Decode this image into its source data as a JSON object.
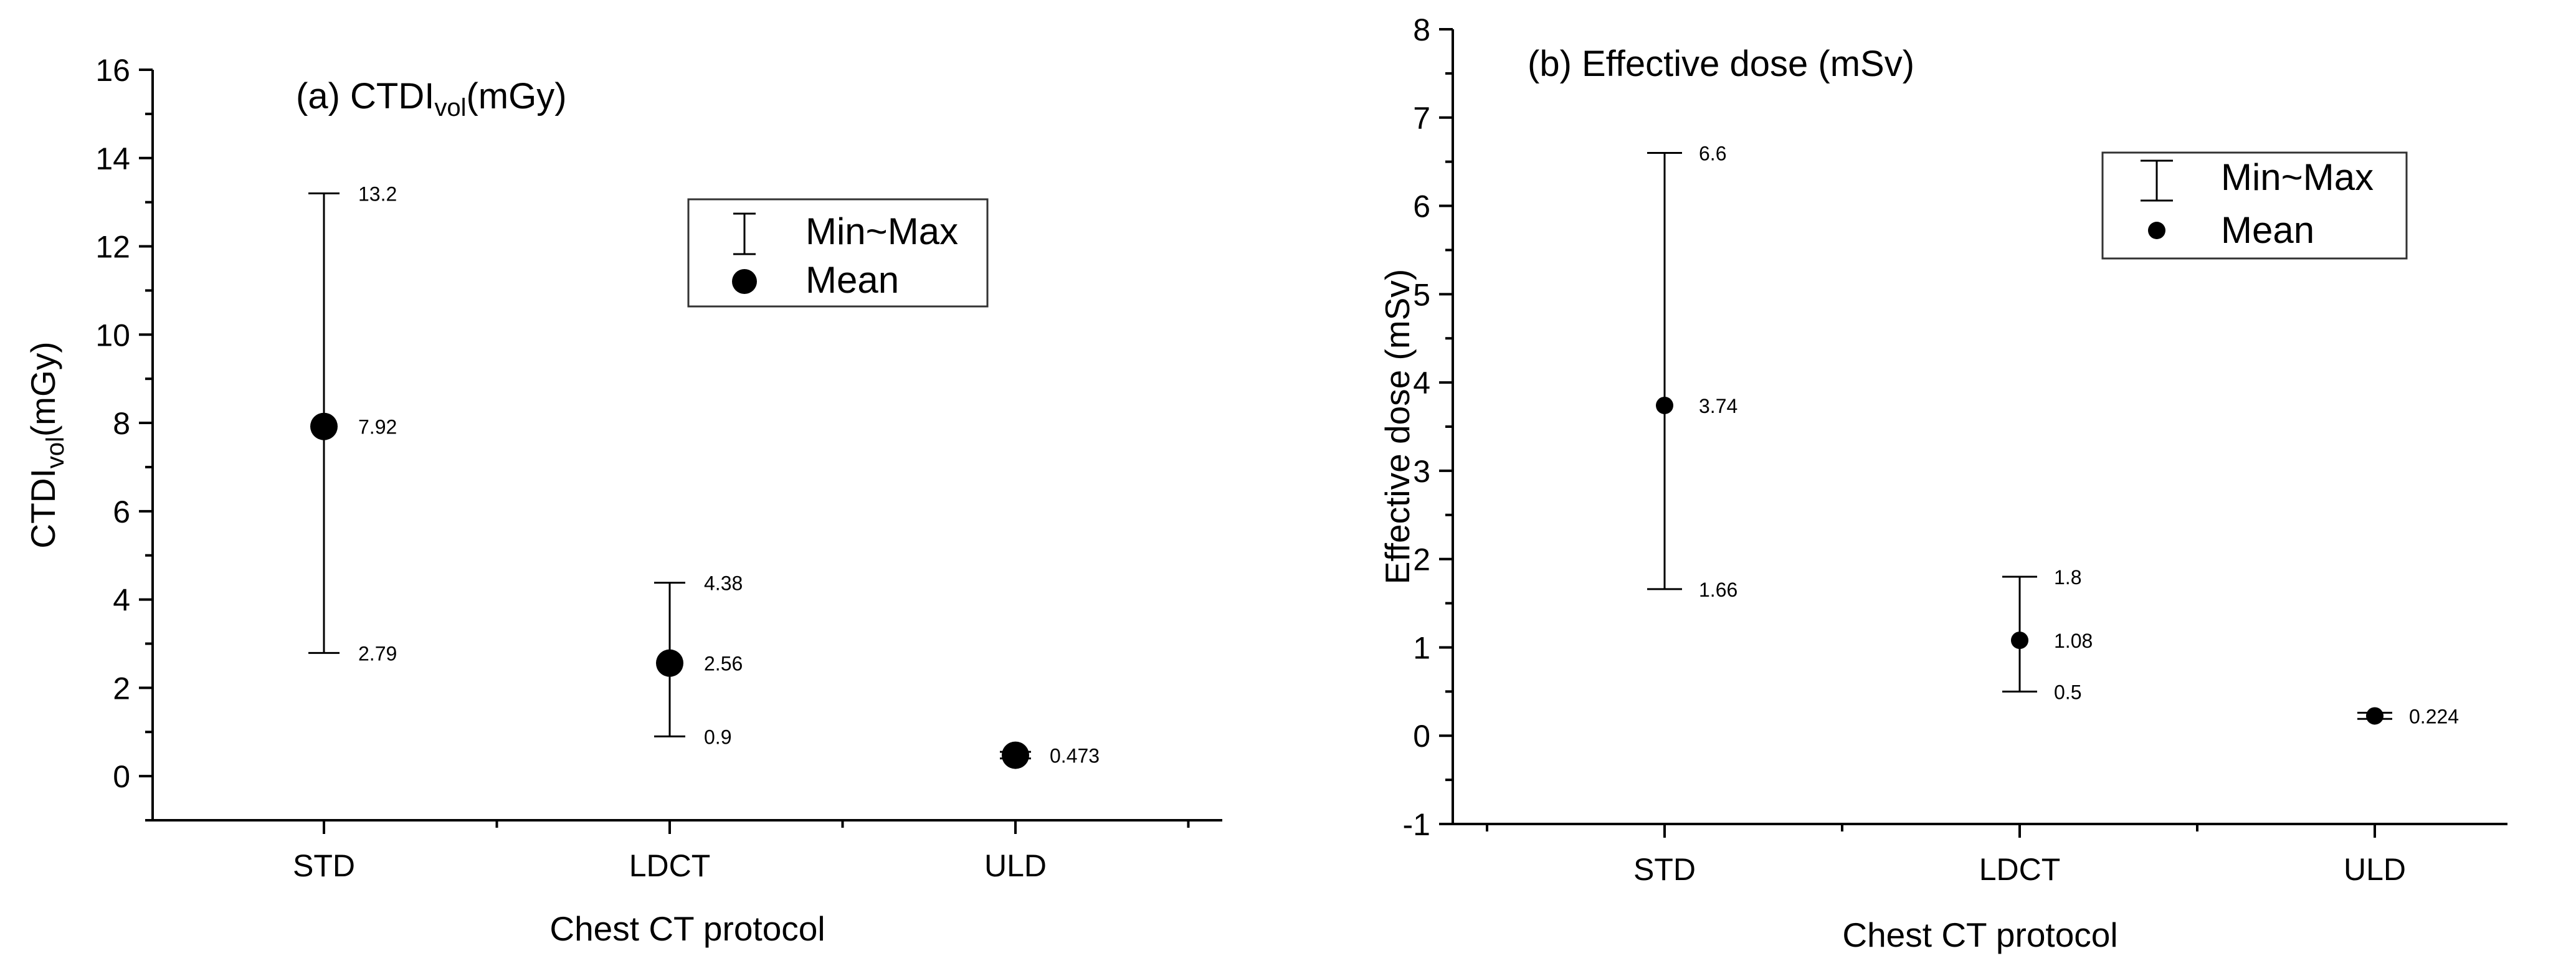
{
  "chart_data": [
    {
      "type": "scatter",
      "title": {
        "prefix": "(a) ",
        "main": "CTDI",
        "sub": "vol",
        "suffix": "(mGy)"
      },
      "xlabel": "Chest CT protocol",
      "ylabel": {
        "main": "CTDI",
        "sub": "vol",
        "suffix": "(mGy)"
      },
      "ylim": [
        -1,
        16
      ],
      "yticks": [
        0,
        2,
        4,
        6,
        8,
        10,
        12,
        14,
        16
      ],
      "categories": [
        "STD",
        "LDCT",
        "ULD"
      ],
      "mean": [
        7.92,
        2.56,
        0.473
      ],
      "min": [
        2.79,
        0.9,
        0.4
      ],
      "max": [
        13.2,
        4.38,
        0.55
      ],
      "labels": [
        {
          "max": "13.2",
          "mean": "7.92",
          "min": "2.79"
        },
        {
          "max": "4.38",
          "mean": "2.56",
          "min": "0.9"
        },
        {
          "max": "",
          "mean": "0.473",
          "min": ""
        }
      ],
      "legend": {
        "range_label": "Min~Max",
        "mean_label": "Mean"
      }
    },
    {
      "type": "scatter",
      "title": {
        "prefix": "(b) ",
        "main": "Effective dose (mSv)",
        "sub": "",
        "suffix": ""
      },
      "xlabel": "Chest CT protocol",
      "ylabel": {
        "main": "Effective dose (mSv)",
        "sub": "",
        "suffix": ""
      },
      "ylim": [
        -1,
        8
      ],
      "yticks": [
        -1,
        0,
        1,
        2,
        3,
        4,
        5,
        6,
        7,
        8
      ],
      "categories": [
        "STD",
        "LDCT",
        "ULD"
      ],
      "mean": [
        3.74,
        1.08,
        0.224
      ],
      "min": [
        1.66,
        0.5,
        0.19
      ],
      "max": [
        6.6,
        1.8,
        0.26
      ],
      "labels": [
        {
          "max": "6.6",
          "mean": "3.74",
          "min": "1.66"
        },
        {
          "max": "1.8",
          "mean": "1.08",
          "min": "0.5"
        },
        {
          "max": "",
          "mean": "0.224",
          "min": ""
        }
      ],
      "legend": {
        "range_label": "Min~Max",
        "mean_label": "Mean"
      }
    }
  ]
}
